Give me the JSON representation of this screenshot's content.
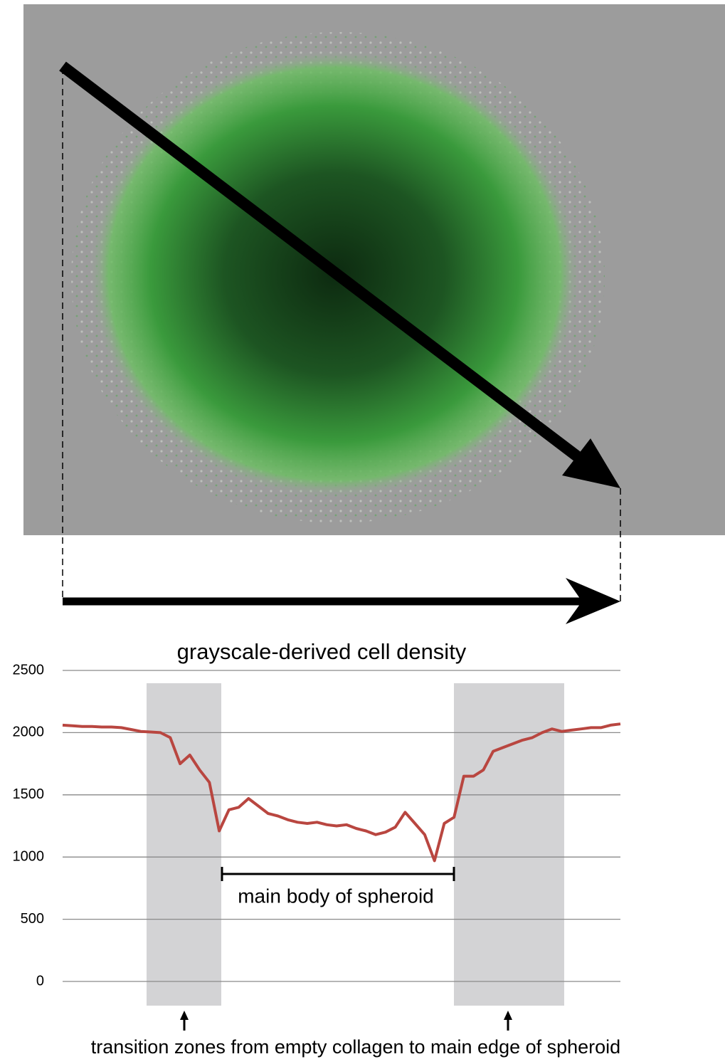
{
  "chart_data": {
    "type": "line",
    "title": "grayscale-derived cell density",
    "annotations": [
      "main body of spheroid",
      "transition zones from empty collagen to main edge of spheroid"
    ],
    "values": [
      2060,
      2055,
      2050,
      2050,
      2045,
      2045,
      2040,
      2025,
      2010,
      2005,
      2000,
      1960,
      1750,
      1820,
      1700,
      1600,
      1210,
      1380,
      1400,
      1470,
      1410,
      1350,
      1330,
      1300,
      1280,
      1270,
      1280,
      1260,
      1250,
      1260,
      1230,
      1210,
      1180,
      1200,
      1240,
      1360,
      1270,
      1180,
      970,
      1270,
      1320,
      1650,
      1650,
      1700,
      1850,
      1880,
      1910,
      1940,
      1960,
      2000,
      2030,
      2010,
      2020,
      2030,
      2040,
      2040,
      2060,
      2070
    ],
    "color": "#b94640",
    "ylim": [
      0,
      2500
    ],
    "yticks": [
      0,
      500,
      1000,
      1500,
      2000,
      2500
    ],
    "grid": true
  }
}
